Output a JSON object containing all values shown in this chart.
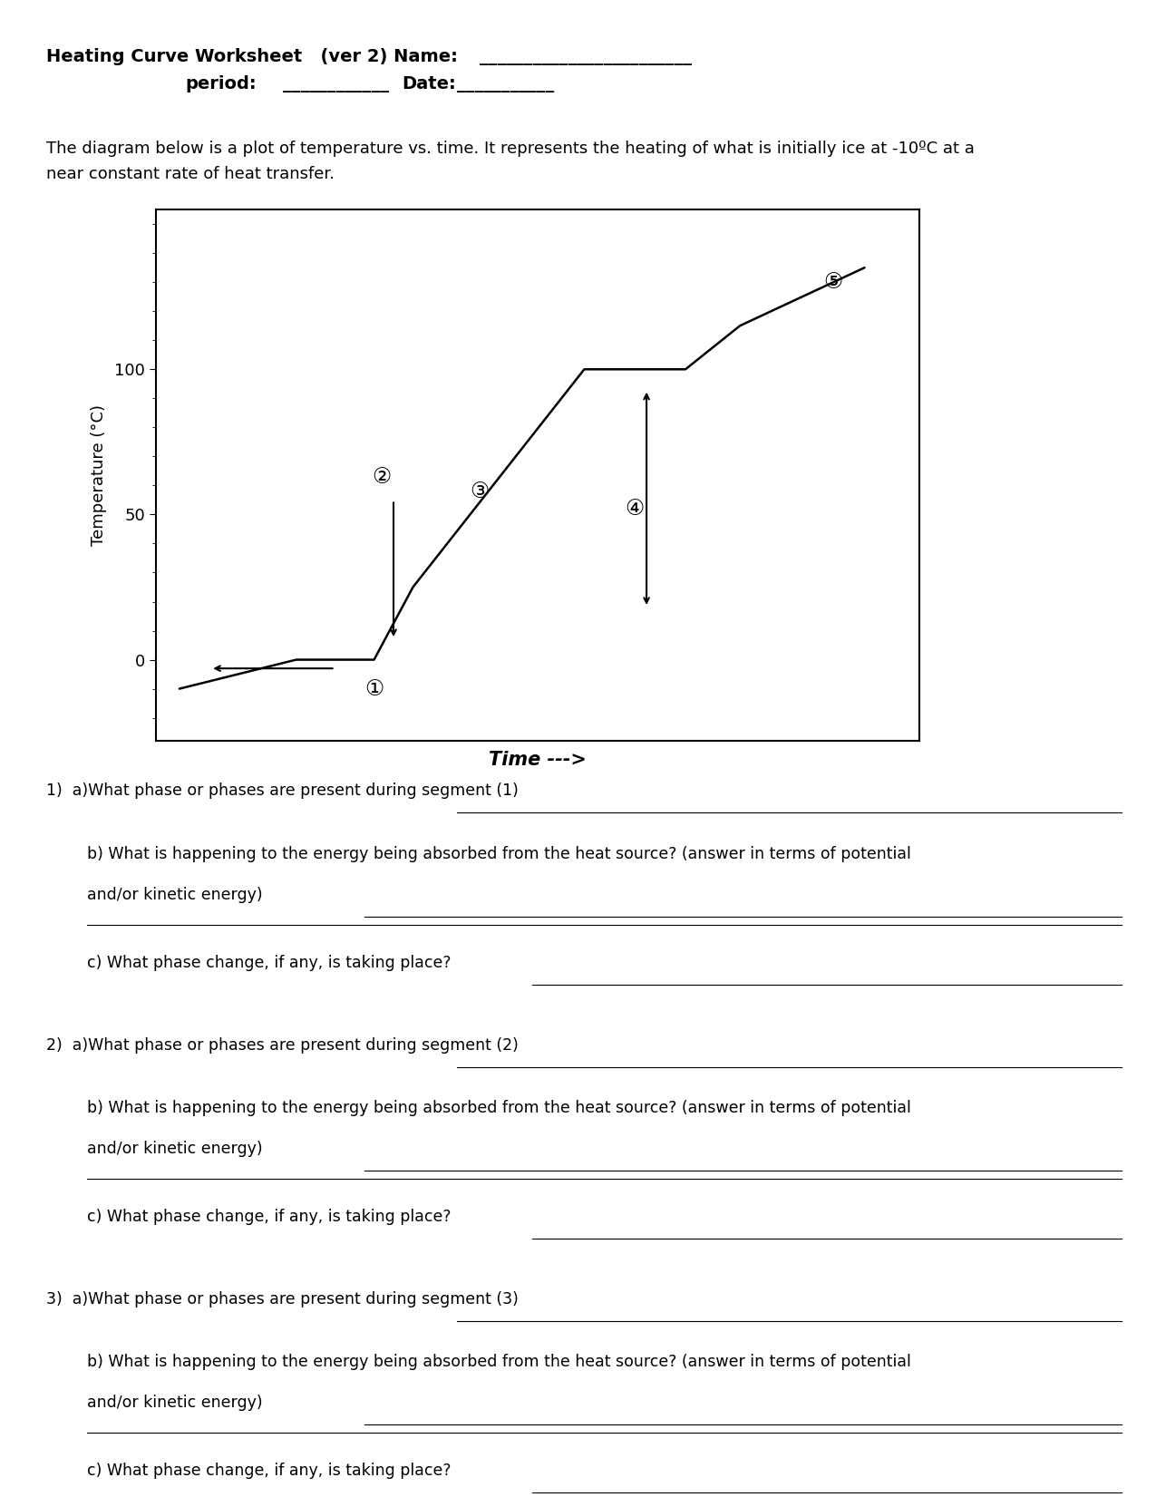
{
  "title_line1": "Heating Curve Worksheet   (ver 2) Name:",
  "title_line2": "period:",
  "title_line2b": "Date:",
  "intro_text1": "The diagram below is a plot of temperature vs. time. It represents the heating of what is initially ice at -10ºC at a",
  "intro_text2": "near constant rate of heat transfer.",
  "ylabel": "Temperature (°C)",
  "xlabel": "Time --->",
  "yticks": [
    0,
    50,
    100
  ],
  "bg_color": "#ffffff",
  "line_color": "#000000",
  "circled": [
    "①",
    "②",
    "③",
    "④",
    "⑤"
  ],
  "questions": [
    {
      "a": "a)What phase or phases are present during segment (1) ",
      "b1": "b) What is happening to the energy being absorbed from the heat source? (answer in terms of potential",
      "b2": "and/or kinetic energy) ",
      "c": "c) What phase change, if any, is taking place? "
    },
    {
      "a": "a)What phase or phases are present during segment (2) ",
      "b1": "b) What is happening to the energy being absorbed from the heat source? (answer in terms of potential",
      "b2": "and/or kinetic energy) ",
      "c": "c) What phase change, if any, is taking place? "
    },
    {
      "a": "a)What phase or phases are present during segment (3) ",
      "b1": "b) What is happening to the energy being absorbed from the heat source? (answer in terms of potential",
      "b2": "and/or kinetic energy) ",
      "c": "c) What phase change, if any, is taking place? "
    }
  ],
  "curve_x": [
    0.0,
    1.5,
    2.5,
    3.0,
    5.2,
    6.5,
    7.2,
    8.8
  ],
  "curve_y": [
    -10,
    0,
    0,
    25,
    100,
    100,
    115,
    135
  ],
  "xlim": [
    -0.3,
    9.5
  ],
  "ylim": [
    -28,
    155
  ]
}
